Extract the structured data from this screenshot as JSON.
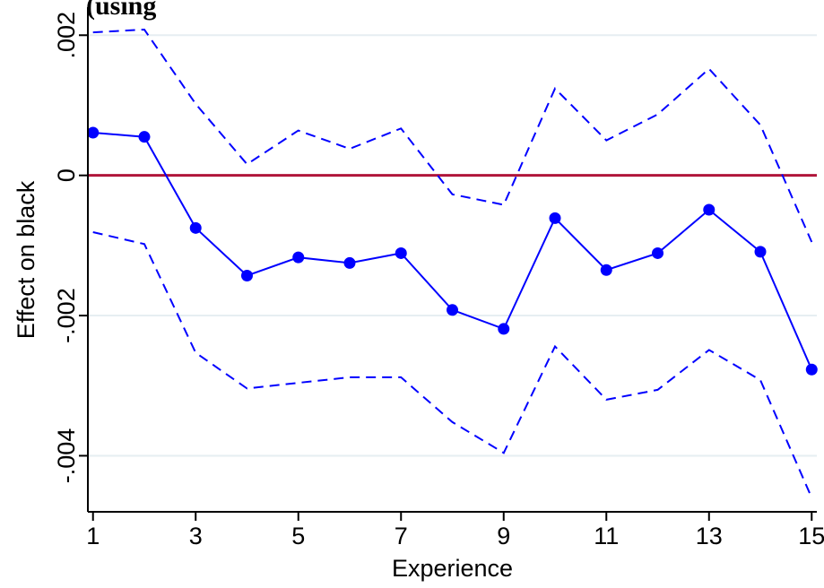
{
  "chart_data": {
    "type": "line",
    "title": "(using",
    "xlabel": "Experience",
    "ylabel": "Effect on black",
    "x": [
      1,
      2,
      3,
      4,
      5,
      6,
      7,
      8,
      9,
      10,
      11,
      12,
      13,
      14,
      15
    ],
    "x_ticks": [
      "1",
      "3",
      "5",
      "7",
      "9",
      "11",
      "13",
      "15"
    ],
    "y_ticks": [
      ".002",
      "0",
      "-.002",
      "-.004"
    ],
    "xlim": [
      0.9,
      15.1
    ],
    "ylim": [
      -0.0048,
      0.0024
    ],
    "grid": true,
    "reference_line": 0,
    "series": [
      {
        "role": "estimate",
        "values": [
          0.00061,
          0.00055,
          -0.00075,
          -0.00143,
          -0.00117,
          -0.00125,
          -0.00111,
          -0.00192,
          -0.00219,
          -0.00061,
          -0.00135,
          -0.00111,
          -0.00049,
          -0.00109,
          -0.00277
        ],
        "color": "#0000ff",
        "style": "solid-markers"
      },
      {
        "role": "upper-bound",
        "values": [
          0.00204,
          0.00208,
          0.00102,
          0.00016,
          0.00064,
          0.00038,
          0.00067,
          -0.00027,
          -0.00042,
          0.00124,
          0.0005,
          0.00087,
          0.00152,
          0.00072,
          -0.00095
        ],
        "color": "#0000ff",
        "style": "dashed"
      },
      {
        "role": "lower-bound",
        "values": [
          -0.00081,
          -0.00098,
          -0.00253,
          -0.00304,
          -0.00296,
          -0.00288,
          -0.00288,
          -0.00352,
          -0.00396,
          -0.00244,
          -0.0032,
          -0.00306,
          -0.00249,
          -0.00292,
          -0.0046
        ],
        "color": "#0000ff",
        "style": "dashed"
      }
    ],
    "colors": {
      "line": "#0000ff",
      "reference": "#b0153a",
      "grid": "#e6eef2",
      "axis": "#000000"
    }
  }
}
